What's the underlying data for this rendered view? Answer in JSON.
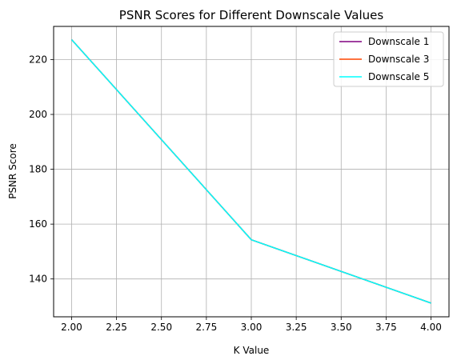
{
  "chart_data": {
    "type": "line",
    "title": "PSNR Scores for Different Downscale Values",
    "xlabel": "K Value",
    "ylabel": "PSNR Score",
    "x": [
      2.0,
      3.0,
      4.0
    ],
    "xlim": [
      1.9,
      4.1
    ],
    "ylim": [
      126.2,
      232.1
    ],
    "xticks": [
      "2.00",
      "2.25",
      "2.50",
      "2.75",
      "3.00",
      "3.25",
      "3.50",
      "3.75",
      "4.00"
    ],
    "yticks": [
      "140",
      "160",
      "180",
      "200",
      "220"
    ],
    "grid": true,
    "legend_position": "top-right",
    "series": [
      {
        "name": "Downscale 1",
        "color": "#800080",
        "values": [
          227.3,
          154.3,
          131.2
        ]
      },
      {
        "name": "Downscale 3",
        "color": "#ff4500",
        "values": [
          227.3,
          154.3,
          131.2
        ]
      },
      {
        "name": "Downscale 5",
        "color": "#00ffff",
        "values": [
          227.3,
          154.3,
          131.2
        ]
      }
    ]
  }
}
